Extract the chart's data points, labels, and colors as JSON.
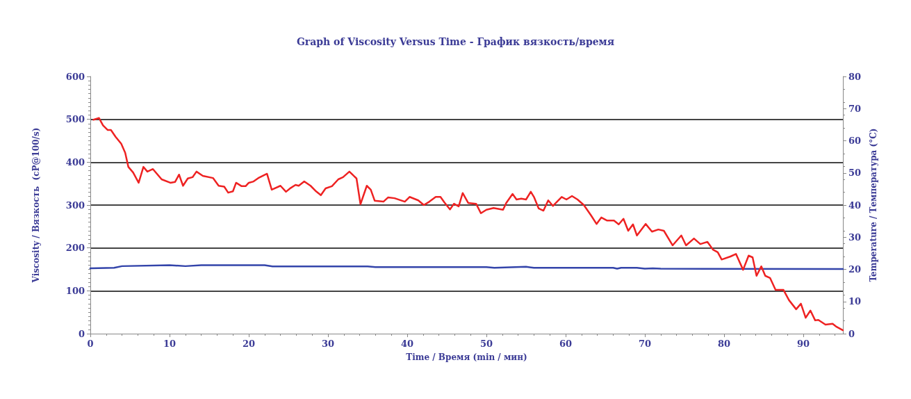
{
  "chart_data": {
    "type": "line",
    "title": "Graph of Viscosity Versus Time - График вязкость/время",
    "xlabel": "Time / Время (min / мин)",
    "ylabel": "Viscosity / Вязкость  (cP@100/s)",
    "y2label": "Temperature / Температура (°C)",
    "xlim": [
      0,
      95
    ],
    "xticks": [
      0,
      10,
      20,
      30,
      40,
      50,
      60,
      70,
      80,
      90
    ],
    "ylim": [
      0,
      600
    ],
    "yticks": [
      0,
      100,
      200,
      300,
      400,
      500,
      600
    ],
    "y2lim": [
      0,
      80
    ],
    "y2ticks": [
      0,
      10,
      20,
      30,
      40,
      50,
      60,
      70,
      80
    ],
    "grid": "y",
    "marker": "none",
    "line_style": "solid",
    "series": [
      {
        "color": "#ee2222",
        "x": [
          0.4,
          1.1,
          1.6,
          2.2,
          2.6,
          3.2,
          3.9,
          4.4,
          4.8,
          5.4,
          6.1,
          6.7,
          7.2,
          7.9,
          9.0,
          10.1,
          10.7,
          11.2,
          11.7,
          12.3,
          12.9,
          13.4,
          14.2,
          15.5,
          16.2,
          16.9,
          17.4,
          18.0,
          18.4,
          19.1,
          19.6,
          20.0,
          20.6,
          21.2,
          22.3,
          22.9,
          24.0,
          24.7,
          25.3,
          25.9,
          26.3,
          27.0,
          27.8,
          28.5,
          29.1,
          29.7,
          30.5,
          31.3,
          31.9,
          32.7,
          33.6,
          34.1,
          34.9,
          35.4,
          35.9,
          37.0,
          37.6,
          38.4,
          39.7,
          40.3,
          41.4,
          42.1,
          42.8,
          43.6,
          44.2,
          44.7,
          45.4,
          45.9,
          46.5,
          47.0,
          47.7,
          48.7,
          49.3,
          50.0,
          50.9,
          52.1,
          52.5,
          53.3,
          53.8,
          54.4,
          55.0,
          55.6,
          56.0,
          56.6,
          57.2,
          57.8,
          58.4,
          59.5,
          60.1,
          60.8,
          61.5,
          62.3,
          63.2,
          63.9,
          64.5,
          65.2,
          66.1,
          66.7,
          67.3,
          67.9,
          68.5,
          69.0,
          70.1,
          70.9,
          71.7,
          72.4,
          73.5,
          74.6,
          75.2,
          76.2,
          77.0,
          77.9,
          78.6,
          79.2,
          79.7,
          80.8,
          81.5,
          82.4,
          83.1,
          83.6,
          84.1,
          84.7,
          85.2,
          85.8,
          86.5,
          87.5,
          88.2,
          89.1,
          89.7,
          90.3,
          90.9,
          91.5,
          91.9,
          92.8,
          93.7,
          94.2,
          95.0
        ],
        "values": [
          499,
          503,
          486,
          475,
          475,
          459,
          443,
          422,
          389,
          376,
          352,
          389,
          378,
          384,
          360,
          352,
          354,
          371,
          345,
          362,
          365,
          378,
          368,
          363,
          345,
          343,
          329,
          332,
          352,
          344,
          344,
          352,
          355,
          363,
          373,
          336,
          345,
          331,
          340,
          347,
          345,
          355,
          345,
          332,
          323,
          339,
          344,
          360,
          365,
          378,
          362,
          302,
          345,
          336,
          310,
          308,
          318,
          316,
          308,
          319,
          311,
          300,
          308,
          319,
          319,
          306,
          290,
          303,
          297,
          328,
          305,
          303,
          281,
          289,
          293,
          289,
          305,
          326,
          313,
          315,
          313,
          331,
          319,
          292,
          287,
          311,
          298,
          319,
          313,
          321,
          313,
          300,
          276,
          256,
          271,
          264,
          264,
          255,
          268,
          240,
          255,
          229,
          256,
          238,
          243,
          240,
          206,
          229,
          206,
          222,
          209,
          214,
          196,
          190,
          173,
          180,
          186,
          149,
          182,
          178,
          135,
          157,
          135,
          130,
          102,
          102,
          78,
          57,
          70,
          37,
          54,
          31,
          32,
          21,
          23,
          16,
          8
        ]
      },
      {
        "color": "#3344aa",
        "axis": "y2",
        "x": [
          0,
          3,
          4,
          10,
          12,
          14,
          22,
          23,
          35,
          36,
          50,
          51,
          55,
          56,
          66,
          66.5,
          67,
          69,
          70,
          71,
          72,
          95
        ],
        "values": [
          20.3,
          20.5,
          21,
          21.3,
          21,
          21.3,
          21.3,
          20.9,
          20.9,
          20.7,
          20.7,
          20.5,
          20.8,
          20.5,
          20.5,
          20.2,
          20.5,
          20.5,
          20.2,
          20.3,
          20.2,
          20.1
        ]
      }
    ]
  }
}
